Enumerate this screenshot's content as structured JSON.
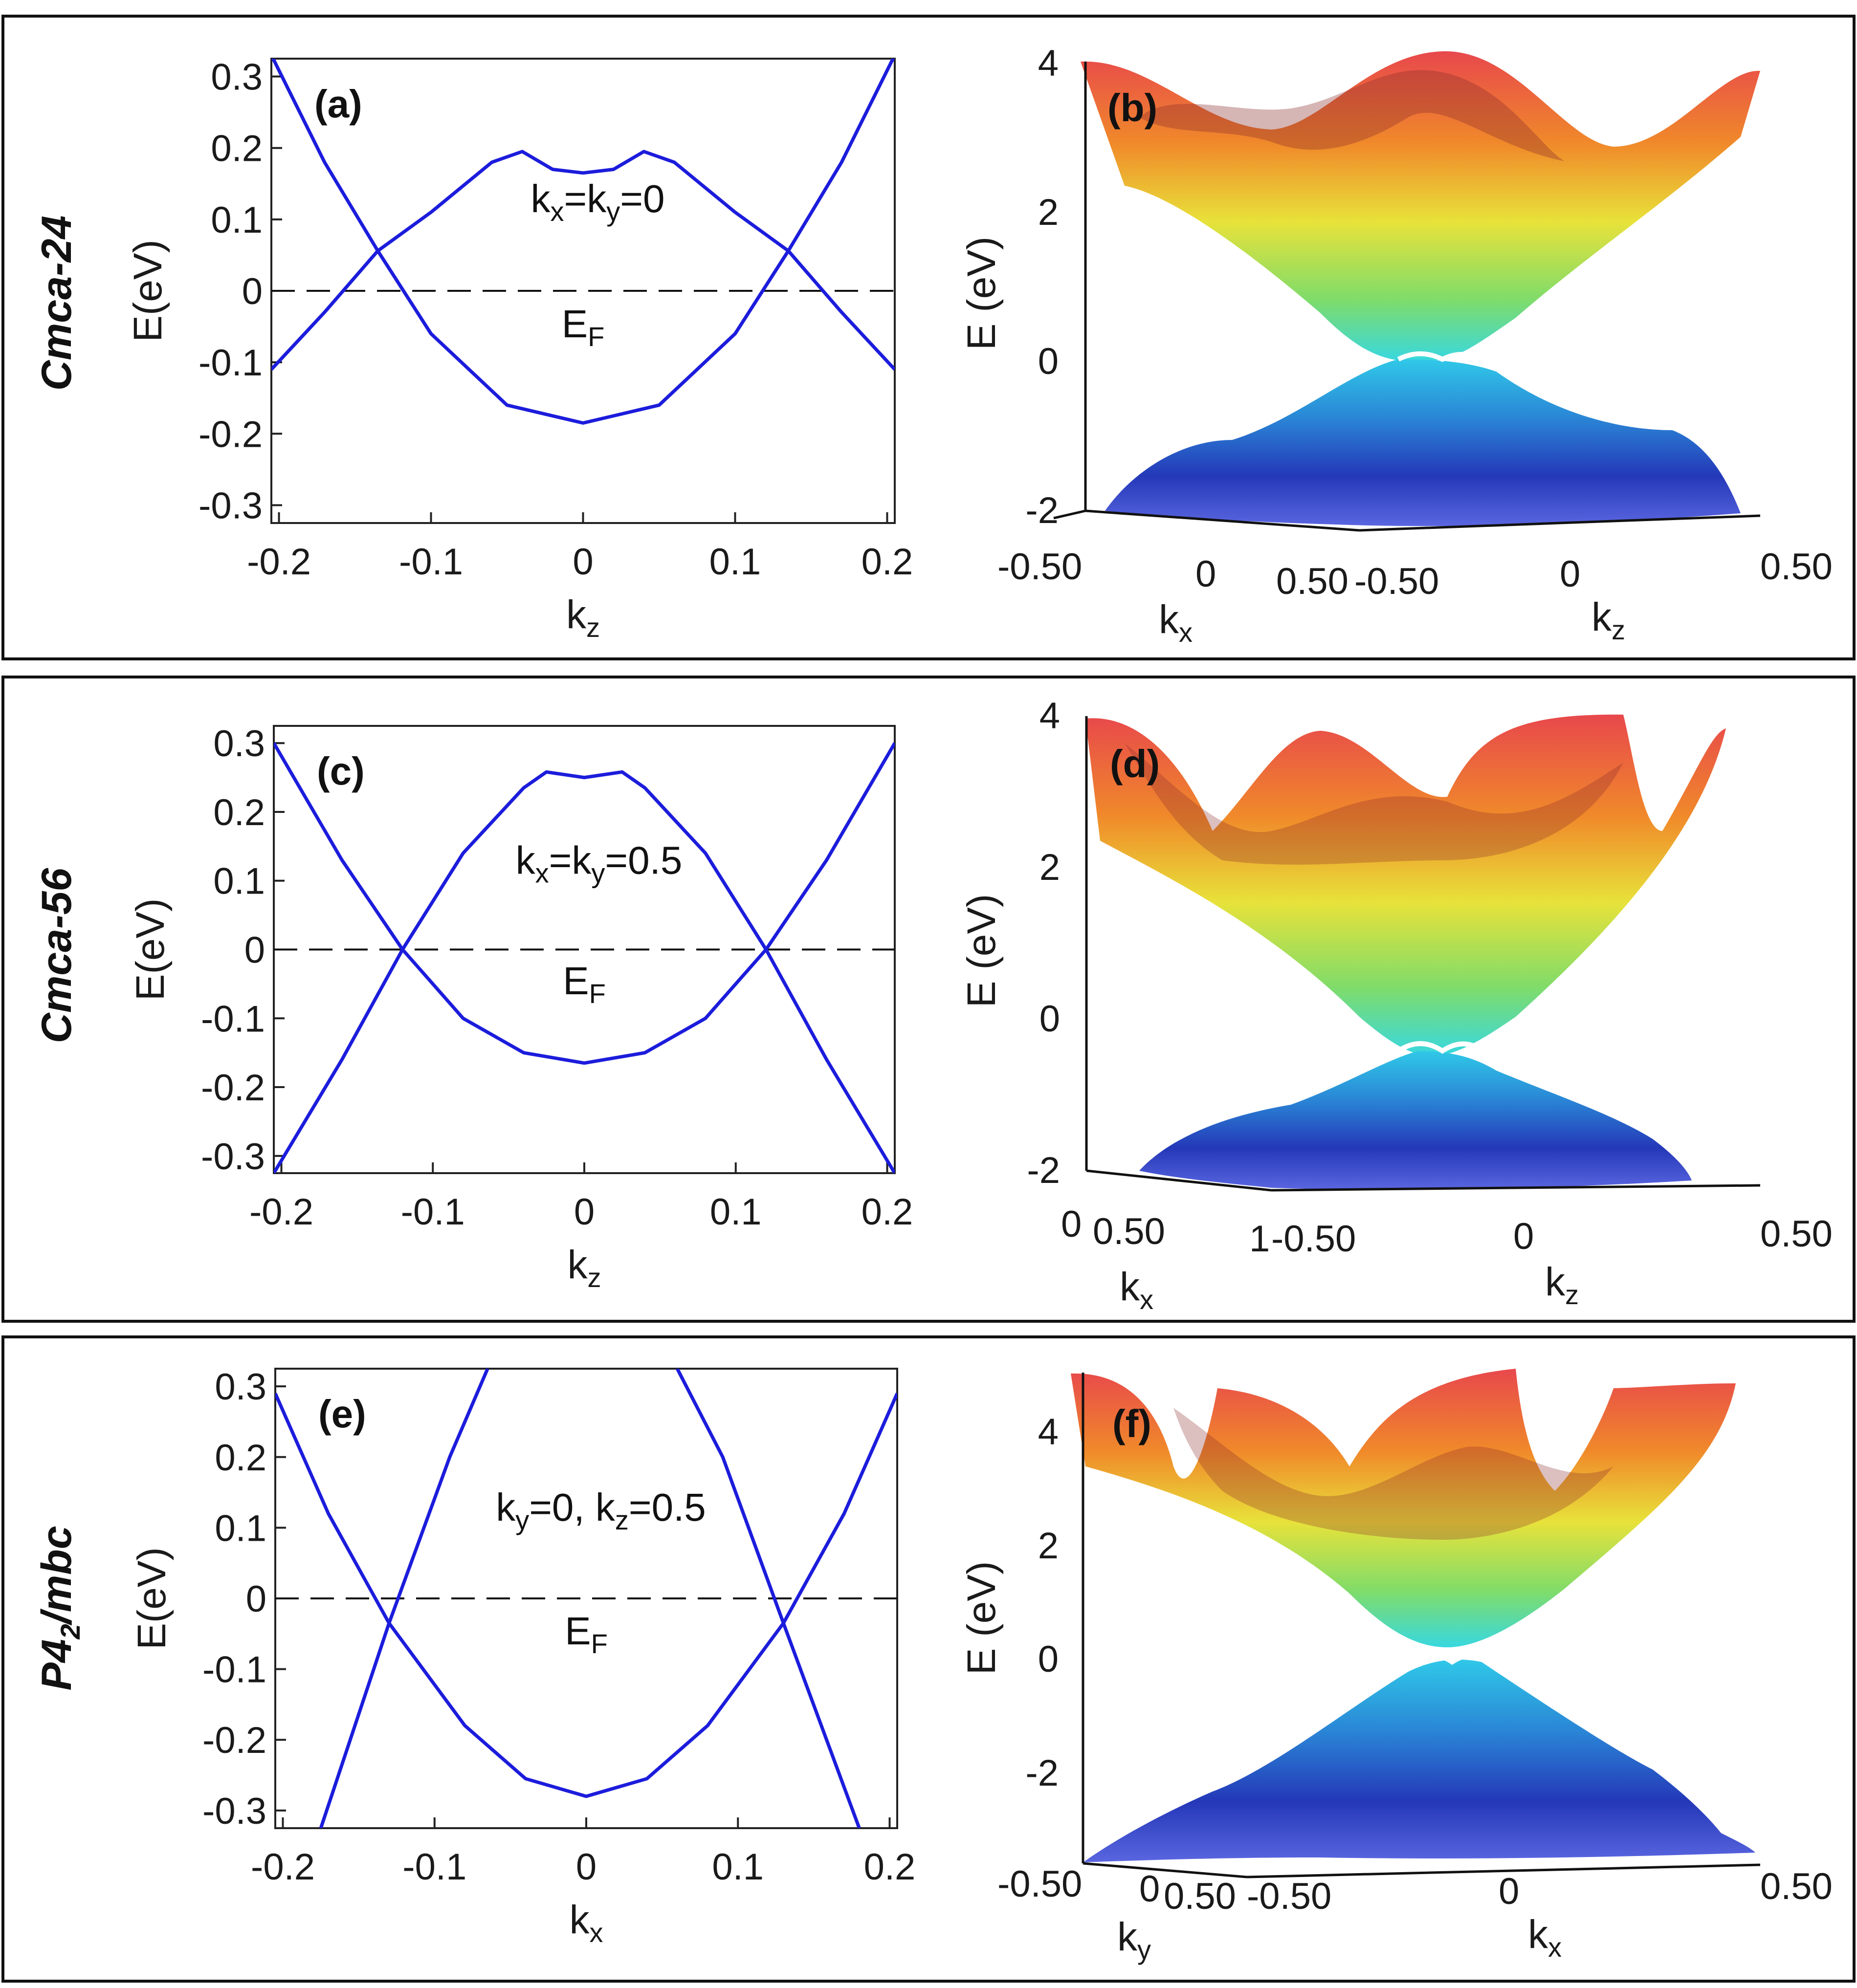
{
  "rows": [
    {
      "label": "Cmca-24",
      "label_sub": ""
    },
    {
      "label": "Cmca-56",
      "label_sub": ""
    },
    {
      "label_pre": "P4",
      "label_sub": "2",
      "label_post": "/mbc"
    }
  ],
  "chart_data": [
    {
      "type": "line",
      "panel": "(a)",
      "xlabel": "k",
      "xlabel_sub": "z",
      "ylabel": "E(eV)",
      "xlim": [
        -0.205,
        0.205
      ],
      "ylim": [
        -0.325,
        0.325
      ],
      "xticks": [
        "-0.2",
        "-0.1",
        "0",
        "0.1",
        "0.2"
      ],
      "yticks": [
        "-0.3",
        "-0.2",
        "-0.1",
        "0",
        "0.1",
        "0.2",
        "0.3"
      ],
      "annotation": {
        "k1": "k",
        "s1": "x",
        "k2": "=k",
        "s2": "y",
        "tail": "=0"
      },
      "fermi_label": "E",
      "fermi_sub": "F",
      "series": [
        {
          "x": [
            -0.205,
            -0.17,
            -0.135,
            -0.1,
            -0.06,
            -0.04,
            -0.02,
            0,
            0.02,
            0.04,
            0.06,
            0.1,
            0.135,
            0.17,
            0.205
          ],
          "y": [
            0.33,
            0.18,
            0.056,
            0.11,
            0.18,
            0.195,
            0.17,
            0.165,
            0.17,
            0.195,
            0.18,
            0.11,
            0.056,
            -0.03,
            -0.11
          ]
        },
        {
          "x": [
            -0.205,
            -0.17,
            -0.135,
            -0.1,
            -0.05,
            0,
            0.05,
            0.1,
            0.135,
            0.17,
            0.205
          ],
          "y": [
            -0.11,
            -0.03,
            0.056,
            -0.06,
            -0.16,
            -0.185,
            -0.16,
            -0.06,
            0.056,
            0.18,
            0.33
          ]
        }
      ]
    },
    {
      "type": "surface",
      "panel": "(b)",
      "zlabel": "E (eV)",
      "zticks": [
        "4",
        "2",
        "0",
        "-2"
      ],
      "xlabel": "k",
      "xlabel_sub": "x",
      "xticks": [
        "-0.50",
        "0",
        "0.50"
      ],
      "ylabel": "k",
      "ylabel_sub": "z",
      "yticks": [
        "-0.50",
        "0",
        "0.50"
      ]
    },
    {
      "type": "line",
      "panel": "(c)",
      "xlabel": "k",
      "xlabel_sub": "z",
      "ylabel": "E(eV)",
      "xlim": [
        -0.205,
        0.205
      ],
      "ylim": [
        -0.325,
        0.325
      ],
      "xticks": [
        "-0.2",
        "-0.1",
        "0",
        "0.1",
        "0.2"
      ],
      "yticks": [
        "-0.3",
        "-0.2",
        "-0.1",
        "0",
        "0.1",
        "0.2",
        "0.3"
      ],
      "annotation": {
        "k1": "k",
        "s1": "x",
        "k2": "=k",
        "s2": "y",
        "tail": "=0.5"
      },
      "fermi_label": "E",
      "fermi_sub": "F",
      "series": [
        {
          "x": [
            -0.205,
            -0.16,
            -0.12,
            -0.08,
            -0.04,
            -0.025,
            0,
            0.025,
            0.04,
            0.08,
            0.12,
            0.16,
            0.205
          ],
          "y": [
            0.3,
            0.13,
            0.0,
            0.14,
            0.235,
            0.258,
            0.25,
            0.258,
            0.235,
            0.14,
            0.0,
            -0.16,
            -0.325
          ]
        },
        {
          "x": [
            -0.205,
            -0.16,
            -0.12,
            -0.08,
            -0.04,
            0,
            0.04,
            0.08,
            0.12,
            0.16,
            0.205
          ],
          "y": [
            -0.325,
            -0.16,
            0.0,
            -0.1,
            -0.15,
            -0.165,
            -0.15,
            -0.1,
            0.0,
            0.13,
            0.3
          ]
        }
      ]
    },
    {
      "type": "surface",
      "panel": "(d)",
      "zlabel": "E (eV)",
      "zticks": [
        "4",
        "2",
        "0",
        "-2"
      ],
      "xlabel": "k",
      "xlabel_sub": "x",
      "xticks": [
        "0",
        "0.50",
        "1"
      ],
      "ylabel": "k",
      "ylabel_sub": "z",
      "yticks": [
        "-0.50",
        "0",
        "0.50"
      ]
    },
    {
      "type": "line",
      "panel": "(e)",
      "xlabel": "k",
      "xlabel_sub": "x",
      "ylabel": "E(eV)",
      "xlim": [
        -0.205,
        0.205
      ],
      "ylim": [
        -0.325,
        0.325
      ],
      "xticks": [
        "-0.2",
        "-0.1",
        "0",
        "0.1",
        "0.2"
      ],
      "yticks": [
        "-0.3",
        "-0.2",
        "-0.1",
        "0",
        "0.1",
        "0.2",
        "0.3"
      ],
      "annotation": {
        "k1": "k",
        "s1": "y",
        "k2": "=0, k",
        "s2": "z",
        "tail": "=0.5"
      },
      "fermi_label": "E",
      "fermi_sub": "F",
      "series": [
        {
          "x": [
            -0.205,
            -0.17,
            -0.13,
            -0.08,
            -0.04,
            0,
            0.04,
            0.08,
            0.13,
            0.17,
            0.205
          ],
          "y": [
            0.29,
            0.12,
            -0.035,
            -0.18,
            -0.255,
            -0.28,
            -0.255,
            -0.18,
            -0.035,
            0.12,
            0.29
          ]
        },
        {
          "x": [
            -0.175,
            -0.13,
            -0.09,
            -0.065
          ],
          "y": [
            -0.325,
            -0.035,
            0.2,
            0.325
          ]
        },
        {
          "x": [
            0.06,
            0.09,
            0.13,
            0.18
          ],
          "y": [
            0.325,
            0.2,
            -0.035,
            -0.325
          ]
        }
      ]
    },
    {
      "type": "surface",
      "panel": "(f)",
      "zlabel": "E (eV)",
      "zticks": [
        "4",
        "2",
        "0",
        "-2"
      ],
      "xlabel": "k",
      "xlabel_sub": "y",
      "xticks": [
        "-0.50",
        "0",
        "0.50"
      ],
      "ylabel": "k",
      "ylabel_sub": "x",
      "yticks": [
        "-0.50",
        "0",
        "0.50"
      ]
    }
  ]
}
